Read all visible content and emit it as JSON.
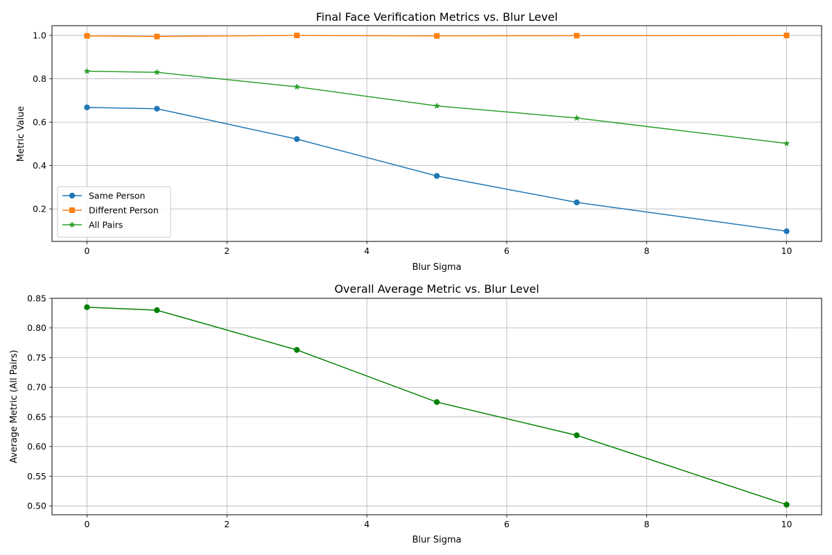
{
  "figure": {
    "background": "#ffffff"
  },
  "chart_data": [
    {
      "type": "line",
      "title": "Final Face Verification Metrics vs. Blur Level",
      "xlabel": "Blur Sigma",
      "ylabel": "Metric Value",
      "xlim": [
        -0.5,
        10.5
      ],
      "ylim": [
        0.05,
        1.045
      ],
      "xticks": [
        0,
        2,
        4,
        6,
        8,
        10
      ],
      "yticks": [
        0.2,
        0.4,
        0.6,
        0.8,
        1.0
      ],
      "ytick_labels": [
        "0.2",
        "0.4",
        "0.6",
        "0.8",
        "1.0"
      ],
      "grid": true,
      "legend": "lower-left",
      "x": [
        0,
        1,
        3,
        5,
        7,
        10
      ],
      "series": [
        {
          "name": "Same Person",
          "values": [
            0.668,
            0.662,
            0.522,
            0.352,
            0.23,
            0.097
          ],
          "color": "#1f77b4",
          "marker": "circle"
        },
        {
          "name": "Different Person",
          "values": [
            0.998,
            0.995,
            1.0,
            0.998,
            0.999,
            1.0
          ],
          "color": "#ff7f0e",
          "marker": "square"
        },
        {
          "name": "All Pairs",
          "values": [
            0.835,
            0.83,
            0.763,
            0.675,
            0.619,
            0.502
          ],
          "color": "#2ca02c",
          "marker": "star"
        }
      ]
    },
    {
      "type": "line",
      "title": "Overall Average Metric vs. Blur Level",
      "xlabel": "Blur Sigma",
      "ylabel": "Average Metric (All Pairs)",
      "xlim": [
        -0.5,
        10.5
      ],
      "ylim": [
        0.485,
        0.85
      ],
      "xticks": [
        0,
        2,
        4,
        6,
        8,
        10
      ],
      "yticks": [
        0.5,
        0.55,
        0.6,
        0.65,
        0.7,
        0.75,
        0.8,
        0.85
      ],
      "ytick_labels": [
        "0.50",
        "0.55",
        "0.60",
        "0.65",
        "0.70",
        "0.75",
        "0.80",
        "0.85"
      ],
      "grid": true,
      "x": [
        0,
        1,
        3,
        5,
        7,
        10
      ],
      "series": [
        {
          "values": [
            0.835,
            0.83,
            0.763,
            0.675,
            0.619,
            0.502
          ],
          "color": "#008000",
          "marker": "circle"
        }
      ]
    }
  ]
}
